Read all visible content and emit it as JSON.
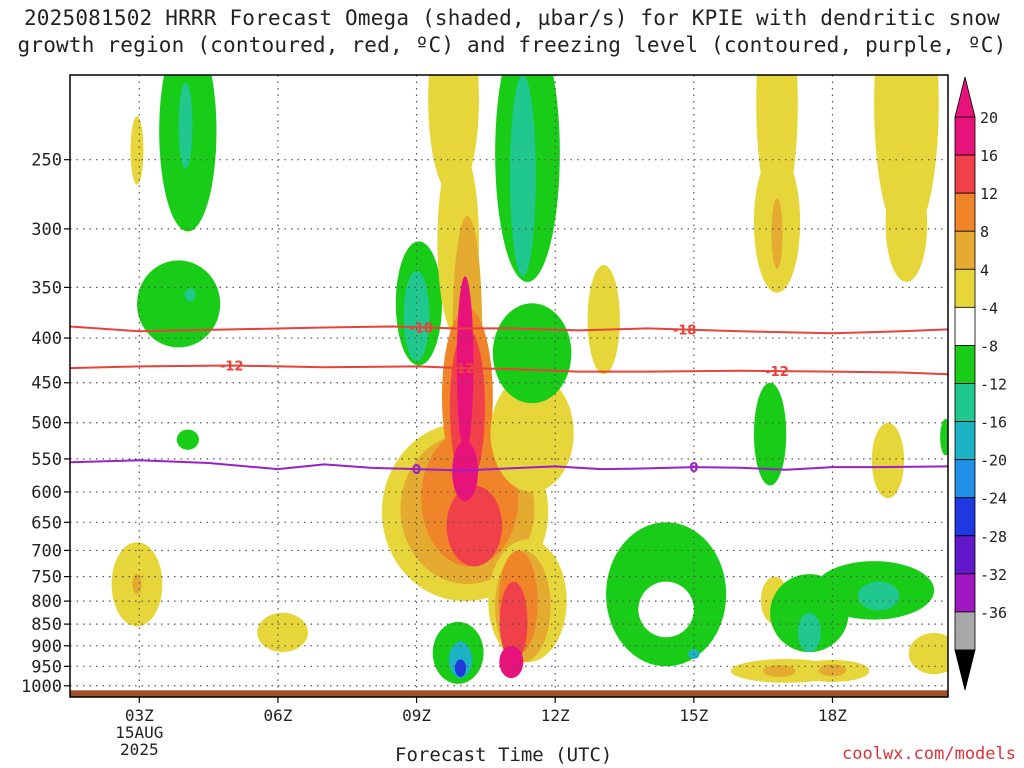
{
  "title": {
    "line1": "2025081502 HRRR Forecast Omega (shaded, µbar/s) for KPIE with dendritic snow",
    "line2": "growth region (contoured, red, ºC) and freezing level (contoured, purple, ºC)"
  },
  "credit": "coolwx.com/models",
  "chart_data": {
    "type": "heatmap",
    "xlabel": "Forecast Time (UTC)",
    "ylabel": "",
    "xlim": [
      1.5,
      20.5
    ],
    "ylim": [
      1030,
      200
    ],
    "y_scale": "log-pressure",
    "grid": true,
    "x_ticks": [
      {
        "x": 3,
        "label": "03Z",
        "sub": [
          "15AUG",
          "2025"
        ]
      },
      {
        "x": 6,
        "label": "06Z"
      },
      {
        "x": 9,
        "label": "09Z"
      },
      {
        "x": 12,
        "label": "12Z"
      },
      {
        "x": 15,
        "label": "15Z"
      },
      {
        "x": 18,
        "label": "18Z"
      }
    ],
    "y_ticks": [
      250,
      300,
      350,
      400,
      450,
      500,
      550,
      600,
      650,
      700,
      750,
      800,
      850,
      900,
      950,
      1000
    ],
    "colorbar": {
      "label_values": [
        20,
        16,
        12,
        8,
        4,
        -4,
        -8,
        -12,
        -16,
        -20,
        -24,
        -28,
        -32,
        -36
      ],
      "bands": [
        {
          "from": 20,
          "to": 24,
          "color": "#e8137a"
        },
        {
          "from": 16,
          "to": 20,
          "color": "#f0404a"
        },
        {
          "from": 12,
          "to": 16,
          "color": "#ef8428"
        },
        {
          "from": 8,
          "to": 12,
          "color": "#e5aa30"
        },
        {
          "from": 4,
          "to": 8,
          "color": "#e6d63a"
        },
        {
          "from": -4,
          "to": 4,
          "color": "#ffffff"
        },
        {
          "from": -8,
          "to": -4,
          "color": "#18cc18"
        },
        {
          "from": -12,
          "to": -8,
          "color": "#20c890"
        },
        {
          "from": -16,
          "to": -12,
          "color": "#1cb4c4"
        },
        {
          "from": -20,
          "to": -16,
          "color": "#2090e8"
        },
        {
          "from": -24,
          "to": -20,
          "color": "#2038e0"
        },
        {
          "from": -28,
          "to": -24,
          "color": "#6018c8"
        },
        {
          "from": -32,
          "to": -28,
          "color": "#a018c0"
        },
        {
          "from": -36,
          "to": -32,
          "color": "#a8a8a8"
        }
      ],
      "top_color": "#e8137a",
      "bottom_color": "#000000"
    },
    "contours": [
      {
        "name": "-18",
        "color": "#e8423a",
        "label": "-18",
        "points": [
          [
            1.5,
            388
          ],
          [
            3,
            393
          ],
          [
            5,
            391
          ],
          [
            7,
            389
          ],
          [
            8.5,
            388
          ],
          [
            9.8,
            390
          ],
          [
            11,
            390
          ],
          [
            12.5,
            392
          ],
          [
            14,
            390
          ],
          [
            16,
            393
          ],
          [
            18,
            395
          ],
          [
            19.5,
            393
          ],
          [
            20.5,
            391
          ]
        ],
        "label_x": [
          9.1,
          14.8
        ]
      },
      {
        "name": "-12",
        "color": "#e8423a",
        "label": "-12",
        "points": [
          [
            1.5,
            433
          ],
          [
            3,
            431
          ],
          [
            5,
            430
          ],
          [
            7,
            432
          ],
          [
            9,
            431
          ],
          [
            10,
            433
          ],
          [
            11,
            434
          ],
          [
            12.5,
            437
          ],
          [
            14,
            437
          ],
          [
            16,
            436
          ],
          [
            18,
            437
          ],
          [
            19.5,
            438
          ],
          [
            20.5,
            440
          ]
        ],
        "label_x": [
          5.0,
          10.0,
          16.8
        ]
      },
      {
        "name": "0",
        "color": "#9a20c8",
        "label": "0",
        "points": [
          [
            1.5,
            555
          ],
          [
            3,
            552
          ],
          [
            4.5,
            556
          ],
          [
            6,
            565
          ],
          [
            7,
            558
          ],
          [
            8,
            563
          ],
          [
            9,
            565
          ],
          [
            10,
            567
          ],
          [
            11,
            564
          ],
          [
            12,
            561
          ],
          [
            13,
            565
          ],
          [
            14,
            564
          ],
          [
            15,
            562
          ],
          [
            16,
            563
          ],
          [
            17,
            566
          ],
          [
            18,
            562
          ],
          [
            19,
            562
          ],
          [
            20.5,
            561
          ]
        ],
        "label_x": [
          9.0,
          15.0
        ]
      }
    ],
    "terrain_color": "#a0522d",
    "blobs": [
      {
        "cx": 2.95,
        "cy": 770,
        "rx": 0.55,
        "ry": 85,
        "color": "#e6d63a"
      },
      {
        "cx": 2.95,
        "cy": 765,
        "rx": 0.1,
        "ry": 20,
        "color": "#e5aa30"
      },
      {
        "cx": 2.95,
        "cy": 245,
        "rx": 0.14,
        "ry": 22,
        "color": "#e6d63a"
      },
      {
        "cx": 4.05,
        "cy": 240,
        "rx": 0.62,
        "ry": 62,
        "color": "#18cc18"
      },
      {
        "cx": 4.0,
        "cy": 230,
        "rx": 0.15,
        "ry": 26,
        "color": "#20c890"
      },
      {
        "cx": 3.85,
        "cy": 368,
        "rx": 0.9,
        "ry": 42,
        "color": "#18cc18"
      },
      {
        "cx": 4.1,
        "cy": 357,
        "rx": 0.12,
        "ry": 6,
        "color": "#20c890"
      },
      {
        "cx": 4.05,
        "cy": 523,
        "rx": 0.24,
        "ry": 14,
        "color": "#18cc18"
      },
      {
        "cx": 6.1,
        "cy": 870,
        "rx": 0.55,
        "ry": 45,
        "color": "#e6d63a"
      },
      {
        "cx": 9.05,
        "cy": 370,
        "rx": 0.5,
        "ry": 60,
        "color": "#18cc18"
      },
      {
        "cx": 9.0,
        "cy": 380,
        "rx": 0.28,
        "ry": 45,
        "color": "#20c890"
      },
      {
        "cx": 9.8,
        "cy": 220,
        "rx": 0.55,
        "ry": 55,
        "color": "#e6d63a"
      },
      {
        "cx": 9.9,
        "cy": 320,
        "rx": 0.45,
        "ry": 80,
        "color": "#e6d63a"
      },
      {
        "cx": 10.05,
        "cy": 650,
        "rx": 1.8,
        "ry": 150,
        "color": "#e6d63a"
      },
      {
        "cx": 10.1,
        "cy": 640,
        "rx": 1.45,
        "ry": 125,
        "color": "#e5aa30"
      },
      {
        "cx": 10.15,
        "cy": 620,
        "rx": 1.05,
        "ry": 110,
        "color": "#ef8428"
      },
      {
        "cx": 10.1,
        "cy": 410,
        "rx": 0.32,
        "ry": 120,
        "color": "#e5aa30"
      },
      {
        "cx": 10.1,
        "cy": 480,
        "rx": 0.55,
        "ry": 110,
        "color": "#ef8428"
      },
      {
        "cx": 10.1,
        "cy": 490,
        "rx": 0.38,
        "ry": 100,
        "color": "#f0404a"
      },
      {
        "cx": 10.25,
        "cy": 660,
        "rx": 0.6,
        "ry": 70,
        "color": "#f0404a"
      },
      {
        "cx": 10.05,
        "cy": 440,
        "rx": 0.18,
        "ry": 100,
        "color": "#e8137a"
      },
      {
        "cx": 10.05,
        "cy": 570,
        "rx": 0.28,
        "ry": 45,
        "color": "#e8137a"
      },
      {
        "cx": 10.0,
        "cy": 880,
        "rx": 0.7,
        "ry": 80,
        "color": "#ffffff"
      },
      {
        "cx": 11.5,
        "cy": 520,
        "rx": 0.9,
        "ry": 80,
        "color": "#e6d63a"
      },
      {
        "cx": 11.4,
        "cy": 810,
        "rx": 0.85,
        "ry": 130,
        "color": "#e6d63a"
      },
      {
        "cx": 11.3,
        "cy": 820,
        "rx": 0.6,
        "ry": 120,
        "color": "#e5aa30"
      },
      {
        "cx": 11.2,
        "cy": 810,
        "rx": 0.42,
        "ry": 110,
        "color": "#ef8428"
      },
      {
        "cx": 11.1,
        "cy": 850,
        "rx": 0.3,
        "ry": 90,
        "color": "#f0404a"
      },
      {
        "cx": 11.05,
        "cy": 940,
        "rx": 0.26,
        "ry": 40,
        "color": "#e8137a"
      },
      {
        "cx": 11.4,
        "cy": 260,
        "rx": 0.7,
        "ry": 85,
        "color": "#18cc18"
      },
      {
        "cx": 11.5,
        "cy": 420,
        "rx": 0.85,
        "ry": 55,
        "color": "#18cc18"
      },
      {
        "cx": 11.3,
        "cy": 270,
        "rx": 0.28,
        "ry": 70,
        "color": "#20c890"
      },
      {
        "cx": 9.9,
        "cy": 920,
        "rx": 0.55,
        "ry": 75,
        "color": "#18cc18"
      },
      {
        "cx": 9.95,
        "cy": 935,
        "rx": 0.25,
        "ry": 45,
        "color": "#1cb4c4"
      },
      {
        "cx": 9.95,
        "cy": 955,
        "rx": 0.12,
        "ry": 22,
        "color": "#2038e0"
      },
      {
        "cx": 13.05,
        "cy": 385,
        "rx": 0.35,
        "ry": 55,
        "color": "#e6d63a"
      },
      {
        "cx": 14.4,
        "cy": 800,
        "rx": 1.3,
        "ry": 150,
        "color": "#18cc18"
      },
      {
        "cx": 14.4,
        "cy": 820,
        "rx": 0.6,
        "ry": 60,
        "color": "#ffffff"
      },
      {
        "cx": 15.0,
        "cy": 920,
        "rx": 0.12,
        "ry": 12,
        "color": "#1cb4c4"
      },
      {
        "cx": 16.65,
        "cy": 520,
        "rx": 0.35,
        "ry": 70,
        "color": "#18cc18"
      },
      {
        "cx": 16.8,
        "cy": 225,
        "rx": 0.45,
        "ry": 65,
        "color": "#e6d63a"
      },
      {
        "cx": 16.8,
        "cy": 300,
        "rx": 0.5,
        "ry": 55,
        "color": "#e6d63a"
      },
      {
        "cx": 16.8,
        "cy": 305,
        "rx": 0.12,
        "ry": 28,
        "color": "#e5aa30"
      },
      {
        "cx": 16.75,
        "cy": 800,
        "rx": 0.3,
        "ry": 50,
        "color": "#e6d63a"
      },
      {
        "cx": 17.0,
        "cy": 962,
        "rx": 1.2,
        "ry": 30,
        "color": "#e6d63a"
      },
      {
        "cx": 16.85,
        "cy": 962,
        "rx": 0.35,
        "ry": 15,
        "color": "#e5aa30"
      },
      {
        "cx": 18.0,
        "cy": 962,
        "rx": 0.8,
        "ry": 28,
        "color": "#e6d63a"
      },
      {
        "cx": 18.0,
        "cy": 960,
        "rx": 0.3,
        "ry": 15,
        "color": "#e5aa30"
      },
      {
        "cx": 17.5,
        "cy": 830,
        "rx": 0.85,
        "ry": 85,
        "color": "#18cc18"
      },
      {
        "cx": 18.9,
        "cy": 780,
        "rx": 1.3,
        "ry": 60,
        "color": "#18cc18"
      },
      {
        "cx": 19.0,
        "cy": 790,
        "rx": 0.45,
        "ry": 30,
        "color": "#20c890"
      },
      {
        "cx": 17.5,
        "cy": 870,
        "rx": 0.25,
        "ry": 45,
        "color": "#20c890"
      },
      {
        "cx": 19.6,
        "cy": 230,
        "rx": 0.7,
        "ry": 80,
        "color": "#e6d63a"
      },
      {
        "cx": 19.6,
        "cy": 300,
        "rx": 0.45,
        "ry": 45,
        "color": "#e6d63a"
      },
      {
        "cx": 19.2,
        "cy": 555,
        "rx": 0.35,
        "ry": 55,
        "color": "#e6d63a"
      },
      {
        "cx": 20.2,
        "cy": 920,
        "rx": 0.55,
        "ry": 50,
        "color": "#e6d63a"
      },
      {
        "cx": 20.45,
        "cy": 520,
        "rx": 0.12,
        "ry": 25,
        "color": "#18cc18"
      }
    ]
  }
}
